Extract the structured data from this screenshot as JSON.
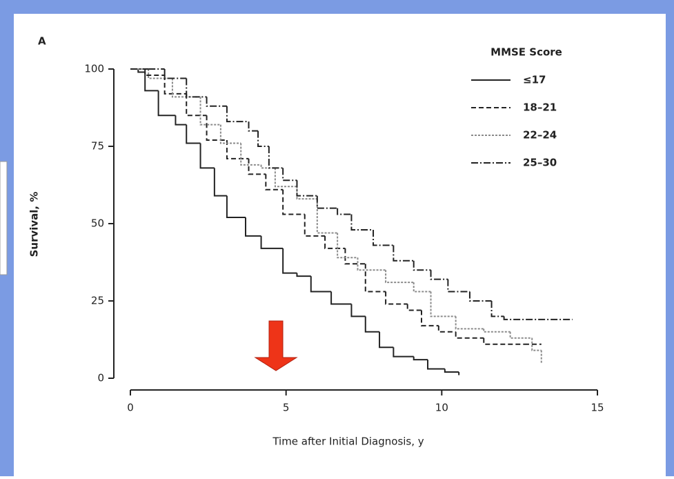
{
  "chart_data": {
    "type": "step",
    "panel_label": "A",
    "xlabel": "Time after Initial Diagnosis, y",
    "ylabel": "Survival, %",
    "legend_title": "MMSE Score",
    "legend": "upper right",
    "xlim": [
      0,
      15
    ],
    "xticks": [
      0,
      5,
      10,
      15
    ],
    "ylim": [
      0,
      100
    ],
    "yticks": [
      0,
      25,
      50,
      75,
      100
    ],
    "series": [
      {
        "name": "≤17",
        "color": "#222222",
        "dash": "none",
        "x": [
          0,
          0.25,
          0.47,
          0.9,
          1.45,
          1.8,
          2.25,
          2.7,
          3.1,
          3.7,
          4.2,
          4.9,
          5.35,
          5.8,
          6.45,
          7.1,
          7.55,
          8,
          8.45,
          9.1,
          9.55,
          10.1,
          10.55
        ],
        "values": [
          100,
          99,
          93,
          85,
          82,
          76,
          68,
          59,
          52,
          46,
          42,
          34,
          33,
          28,
          24,
          20,
          15,
          10,
          7,
          6,
          3,
          2,
          1
        ]
      },
      {
        "name": "18–21",
        "color": "#222222",
        "dash": "7 4",
        "x": [
          0,
          0.47,
          1.1,
          1.8,
          2.45,
          3.1,
          3.8,
          4.35,
          4.9,
          5.6,
          6.25,
          6.9,
          7.55,
          8.2,
          8.9,
          9.35,
          9.9,
          10.45,
          11.35,
          12.65,
          13.2
        ],
        "values": [
          100,
          98,
          92,
          85,
          77,
          71,
          66,
          61,
          53,
          46,
          42,
          37,
          28,
          24,
          22,
          17,
          15,
          13,
          11,
          11,
          11
        ]
      },
      {
        "name": "22–24",
        "color": "#8a8a8a",
        "dash": "3 2",
        "x": [
          0,
          0.58,
          1.35,
          2.25,
          2.9,
          3.55,
          4.2,
          4.65,
          5.35,
          6,
          6.65,
          7.3,
          8.2,
          9.1,
          9.65,
          10.45,
          11.35,
          12.2,
          12.9,
          13.2
        ],
        "values": [
          100,
          97,
          91,
          82,
          76,
          69,
          68,
          62,
          58,
          47,
          39,
          35,
          31,
          28,
          20,
          16,
          15,
          13,
          9,
          5
        ]
      },
      {
        "name": "25–30",
        "color": "#222222",
        "dash": "10 3 2 3",
        "x": [
          0,
          0.58,
          1.1,
          1.8,
          2.45,
          3.1,
          3.8,
          4.1,
          4.45,
          4.9,
          5.35,
          6,
          6.65,
          7.1,
          7.8,
          8.45,
          9.1,
          9.65,
          10.2,
          10.9,
          11.6,
          12,
          14.2
        ],
        "values": [
          100,
          100,
          97,
          91,
          88,
          83,
          80,
          75,
          68,
          64,
          59,
          55,
          53,
          48,
          43,
          38,
          35,
          32,
          28,
          25,
          20,
          19,
          19
        ]
      }
    ]
  }
}
